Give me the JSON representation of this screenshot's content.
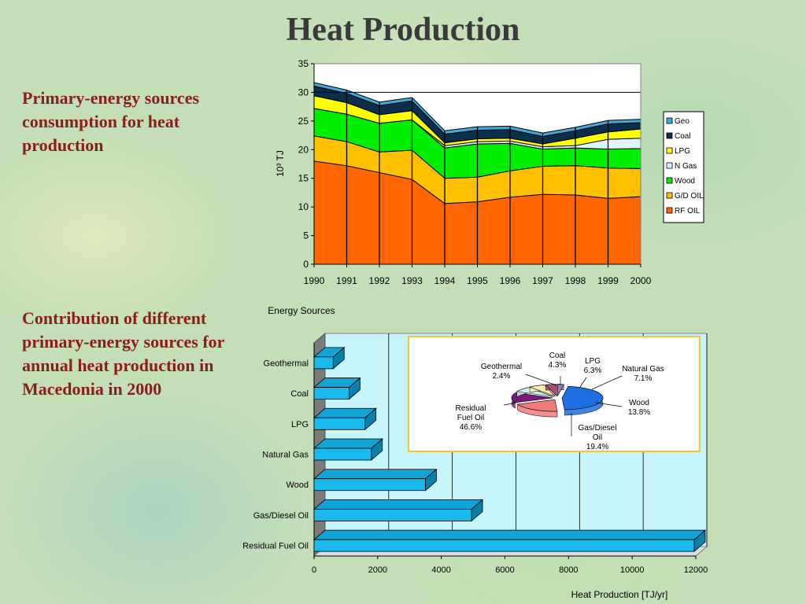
{
  "slide": {
    "title": "Heat Production",
    "text1": "Primary-energy sources consumption for heat production",
    "text2": "Contribution of different primary-energy sources for annual heat production in Macedonia in 2000"
  },
  "chart_data": [
    {
      "type": "area",
      "stacked": true,
      "x": [
        "1990",
        "1991",
        "1992",
        "1993",
        "1994",
        "1995",
        "1996",
        "1997",
        "1998",
        "1999",
        "2000"
      ],
      "ylabel": "10³ TJ",
      "ylim": [
        0,
        35
      ],
      "yticks": [
        "0",
        "5",
        "10",
        "15",
        "20",
        "25",
        "30",
        "35"
      ],
      "legend_position": "right",
      "series": [
        {
          "name": "RF OIL",
          "color": "#ff6600",
          "values": [
            18.0,
            17.2,
            16.0,
            14.8,
            10.6,
            10.9,
            11.7,
            12.2,
            12.1,
            11.5,
            11.8
          ]
        },
        {
          "name": "G/D OIL",
          "color": "#ffc000",
          "values": [
            4.4,
            4.2,
            3.6,
            5.1,
            4.4,
            4.3,
            4.6,
            4.9,
            5.1,
            5.3,
            4.9
          ]
        },
        {
          "name": "Wood",
          "color": "#00ee00",
          "values": [
            4.8,
            4.8,
            5.0,
            5.3,
            5.3,
            5.8,
            4.8,
            3.0,
            3.1,
            3.3,
            3.5
          ]
        },
        {
          "name": "N Gas",
          "color": "#dff5ff",
          "values": [
            0,
            0,
            0,
            0,
            0.4,
            0.4,
            0.4,
            0.4,
            0.4,
            1.7,
            1.8
          ]
        },
        {
          "name": "LPG",
          "color": "#ffff00",
          "values": [
            2.2,
            2.0,
            1.5,
            1.6,
            0.5,
            0.5,
            0.5,
            0.5,
            1.3,
            1.3,
            1.6
          ]
        },
        {
          "name": "Coal",
          "color": "#0b2f4a",
          "values": [
            1.7,
            1.6,
            1.6,
            1.7,
            1.5,
            1.5,
            1.5,
            1.3,
            1.3,
            1.4,
            1.1
          ]
        },
        {
          "name": "Geo",
          "color": "#3fa8d8",
          "values": [
            0.6,
            0.6,
            0.6,
            0.6,
            0.6,
            0.6,
            0.6,
            0.6,
            0.6,
            0.6,
            0.6
          ]
        }
      ]
    },
    {
      "type": "bar",
      "orientation": "horizontal",
      "title": "Energy Sources",
      "xlabel": "Heat Production [TJ/yr]",
      "xlim": [
        0,
        12000
      ],
      "xticks": [
        "0",
        "2000",
        "4000",
        "6000",
        "8000",
        "10000",
        "12000"
      ],
      "categories": [
        "Geothermal",
        "Coal",
        "LPG",
        "Natural Gas",
        "Wood",
        "Gas/Diesel Oil",
        "Residual Fuel Oil"
      ],
      "values": [
        600,
        1100,
        1600,
        1800,
        3500,
        4950,
        11950
      ],
      "color": "#1ab8ec"
    },
    {
      "type": "pie",
      "slices": [
        {
          "label": "Residual Fuel Oil",
          "value": 46.6,
          "display": [
            "Residual",
            "Fuel Oil",
            "46.6%"
          ],
          "color": "#1e6fe0"
        },
        {
          "label": "Gas/Diesel Oil",
          "value": 19.4,
          "display": [
            "Gas/Diesel",
            "Oil",
            "19.4%"
          ],
          "color": "#f07b7b"
        },
        {
          "label": "Wood",
          "value": 13.8,
          "display": [
            "Wood",
            "13.8%"
          ],
          "color": "#7a1a7a"
        },
        {
          "label": "Natural Gas",
          "value": 7.1,
          "display": [
            "Natural Gas",
            "7.1%"
          ],
          "color": "#c9eefc"
        },
        {
          "label": "LPG",
          "value": 6.3,
          "display": [
            "LPG",
            "6.3%"
          ],
          "color": "#fff3b0"
        },
        {
          "label": "Coal",
          "value": 4.3,
          "display": [
            "Coal",
            "4.3%"
          ],
          "color": "#b54a6a"
        },
        {
          "label": "Geothermal",
          "value": 2.4,
          "display": [
            "Geothermal",
            "2.4%"
          ],
          "color": "#8d84c4"
        }
      ]
    }
  ]
}
